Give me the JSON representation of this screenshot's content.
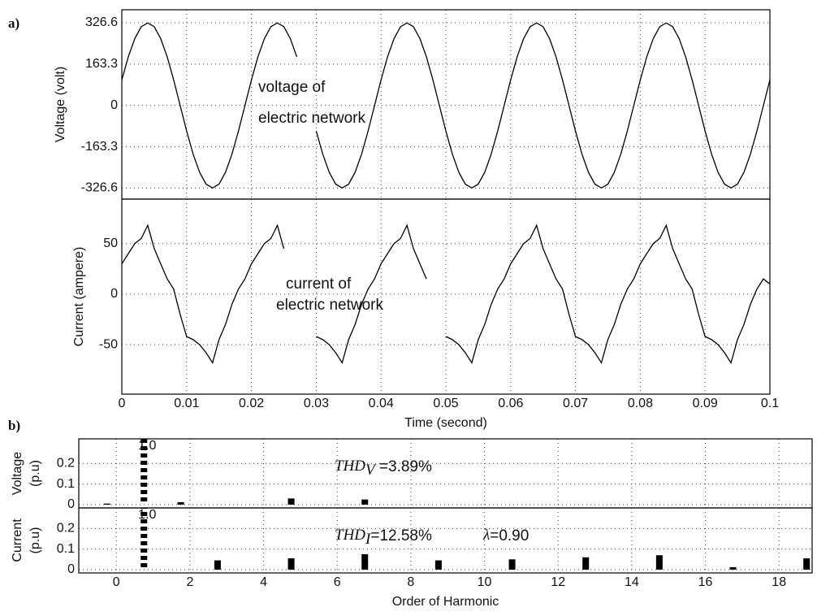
{
  "chart_data": [
    {
      "type": "line",
      "panel_label": "a)",
      "ylabel": "Voltage (volt)",
      "color": "#000000",
      "grid": true,
      "show_xtick_labels": false,
      "annotation_lines": [
        "voltage of",
        "electric network"
      ],
      "xlim": [
        0,
        0.1
      ],
      "ylim": [
        -370,
        378
      ],
      "xticks": [
        0,
        0.01,
        0.02,
        0.03,
        0.04,
        0.05,
        0.06,
        0.07,
        0.08,
        0.09,
        0.1
      ],
      "yticks": [
        326.6,
        163.3,
        0,
        -163.3,
        -326.6
      ],
      "x": [
        0,
        0.001,
        0.002,
        0.003,
        0.004,
        0.005,
        0.006,
        0.007,
        0.008,
        0.009,
        0.01,
        0.011,
        0.012,
        0.013,
        0.014,
        0.015,
        0.016,
        0.017,
        0.018,
        0.019,
        0.02,
        0.021,
        0.022,
        0.023,
        0.024,
        0.025,
        0.026,
        0.027,
        0.028,
        0.029,
        0.03,
        0.031,
        0.032,
        0.033,
        0.034,
        0.035,
        0.036,
        0.037,
        0.038,
        0.039,
        0.04,
        0.041,
        0.042,
        0.043,
        0.044,
        0.045,
        0.046,
        0.047,
        0.048,
        0.049,
        0.05,
        0.051,
        0.052,
        0.053,
        0.054,
        0.055,
        0.056,
        0.057,
        0.058,
        0.059,
        0.06,
        0.061,
        0.062,
        0.063,
        0.064,
        0.065,
        0.066,
        0.067,
        0.068,
        0.069,
        0.07,
        0.071,
        0.072,
        0.073,
        0.074,
        0.075,
        0.076,
        0.077,
        0.078,
        0.079,
        0.08,
        0.081,
        0.082,
        0.083,
        0.084,
        0.085,
        0.086,
        0.087,
        0.088,
        0.089,
        0.09,
        0.091,
        0.092,
        0.093,
        0.094,
        0.095,
        0.096,
        0.097,
        0.098,
        0.099,
        0.1
      ],
      "values": [
        101,
        192,
        264,
        311,
        326,
        311,
        264,
        192,
        101,
        0,
        -101,
        -192,
        -264,
        -311,
        -326,
        -311,
        -264,
        -192,
        -101,
        0,
        101,
        192,
        264,
        311,
        326,
        311,
        264,
        192,
        null,
        null,
        -101,
        -192,
        -264,
        -311,
        -326,
        -311,
        -264,
        -192,
        -101,
        0,
        101,
        192,
        264,
        311,
        326,
        311,
        264,
        192,
        101,
        0,
        -101,
        -192,
        -264,
        -311,
        -326,
        -311,
        -264,
        -192,
        -101,
        0,
        101,
        192,
        264,
        311,
        326,
        311,
        264,
        192,
        101,
        0,
        -101,
        -192,
        -264,
        -311,
        -326,
        -311,
        -264,
        -192,
        -101,
        0,
        101,
        192,
        264,
        311,
        326,
        311,
        264,
        192,
        101,
        0,
        -101,
        -192,
        -264,
        -311,
        -326,
        -311,
        -264,
        -192,
        -101,
        0,
        101
      ]
    },
    {
      "type": "line",
      "ylabel": "Current (ampere)",
      "xlabel": "Time (second)",
      "color": "#000000",
      "grid": true,
      "annotation_lines": [
        "current of",
        "electric network"
      ],
      "xlim": [
        0,
        0.1
      ],
      "ylim": [
        -99,
        94
      ],
      "xticks": [
        0,
        0.01,
        0.02,
        0.03,
        0.04,
        0.05,
        0.06,
        0.07,
        0.08,
        0.09,
        0.1
      ],
      "yticks": [
        50,
        0,
        -50
      ],
      "x": [
        0,
        0.001,
        0.002,
        0.003,
        0.004,
        0.005,
        0.006,
        0.007,
        0.008,
        0.009,
        0.01,
        0.011,
        0.012,
        0.013,
        0.014,
        0.015,
        0.016,
        0.017,
        0.018,
        0.019,
        0.02,
        0.021,
        0.022,
        0.023,
        0.024,
        0.025,
        0.026,
        0.027,
        0.028,
        0.029,
        0.03,
        0.031,
        0.032,
        0.033,
        0.034,
        0.035,
        0.036,
        0.037,
        0.038,
        0.039,
        0.04,
        0.041,
        0.042,
        0.043,
        0.044,
        0.045,
        0.046,
        0.047,
        0.048,
        0.049,
        0.05,
        0.051,
        0.052,
        0.053,
        0.054,
        0.055,
        0.056,
        0.057,
        0.058,
        0.059,
        0.06,
        0.061,
        0.062,
        0.063,
        0.064,
        0.065,
        0.066,
        0.067,
        0.068,
        0.069,
        0.07,
        0.071,
        0.072,
        0.073,
        0.074,
        0.075,
        0.076,
        0.077,
        0.078,
        0.079,
        0.08,
        0.081,
        0.082,
        0.083,
        0.084,
        0.085,
        0.086,
        0.087,
        0.088,
        0.089,
        0.09,
        0.091,
        0.092,
        0.093,
        0.094,
        0.095,
        0.096,
        0.097,
        0.098,
        0.099,
        0.1
      ],
      "values": [
        30,
        40,
        50,
        55,
        68,
        45,
        30,
        15,
        5,
        -20,
        -42,
        -45,
        -50,
        -58,
        -68,
        -45,
        -30,
        -10,
        5,
        15,
        30,
        40,
        50,
        55,
        68,
        45,
        null,
        null,
        null,
        null,
        -42,
        -45,
        -50,
        -58,
        -68,
        -45,
        -30,
        -10,
        5,
        15,
        30,
        40,
        50,
        55,
        68,
        45,
        30,
        15,
        null,
        null,
        -42,
        -45,
        -50,
        -58,
        -68,
        -45,
        -30,
        -10,
        5,
        15,
        30,
        40,
        50,
        55,
        68,
        45,
        30,
        15,
        5,
        -20,
        -42,
        -45,
        -50,
        -58,
        -68,
        -45,
        -30,
        -10,
        5,
        15,
        30,
        40,
        50,
        55,
        68,
        45,
        30,
        15,
        5,
        -20,
        -42,
        -45,
        -50,
        -58,
        -68,
        -45,
        -30,
        -10,
        5,
        15,
        10
      ]
    },
    {
      "type": "bar",
      "panel_label": "b)",
      "ylabel": [
        "Voltage",
        "(p.u)"
      ],
      "color": "#000000",
      "grid": true,
      "show_xtick_labels": false,
      "annotations": [
        {
          "main": "THD",
          "sub": "V",
          "tail": " =3.89%"
        }
      ],
      "xlim": [
        -1.02,
        18.9
      ],
      "ylim": [
        -0.016,
        0.32
      ],
      "xticks": [
        0,
        2,
        4,
        6,
        8,
        10,
        12,
        14,
        16,
        18
      ],
      "yticks": [
        0,
        0.1,
        0.2
      ],
      "x": [
        -0.25,
        0.75,
        1.75,
        4.75,
        6.75
      ],
      "values": [
        0.005,
        1.0,
        0.012,
        0.03,
        0.025
      ],
      "value_labels": [
        null,
        "1.0",
        null,
        null,
        null
      ]
    },
    {
      "type": "bar",
      "ylabel": [
        "Current",
        "(p.u)"
      ],
      "xlabel": "Order of Harmonic",
      "color": "#000000",
      "grid": true,
      "annotations": [
        {
          "main": "THD",
          "sub": "I",
          "tail": "=12.58%"
        },
        {
          "main": "λ",
          "tail": "=0.90"
        }
      ],
      "xlim": [
        -1.02,
        18.9
      ],
      "ylim": [
        -0.016,
        0.3
      ],
      "xticks": [
        0,
        2,
        4,
        6,
        8,
        10,
        12,
        14,
        16,
        18
      ],
      "yticks": [
        0,
        0.1,
        0.2
      ],
      "x": [
        0.75,
        2.75,
        4.75,
        6.75,
        8.75,
        10.75,
        12.75,
        14.75,
        16.75,
        18.75
      ],
      "values": [
        1.0,
        0.045,
        0.055,
        0.075,
        0.045,
        0.05,
        0.06,
        0.07,
        0.012,
        0.055
      ],
      "value_labels": [
        "1.0",
        null,
        null,
        null,
        null,
        null,
        null,
        null,
        null,
        null
      ]
    }
  ]
}
